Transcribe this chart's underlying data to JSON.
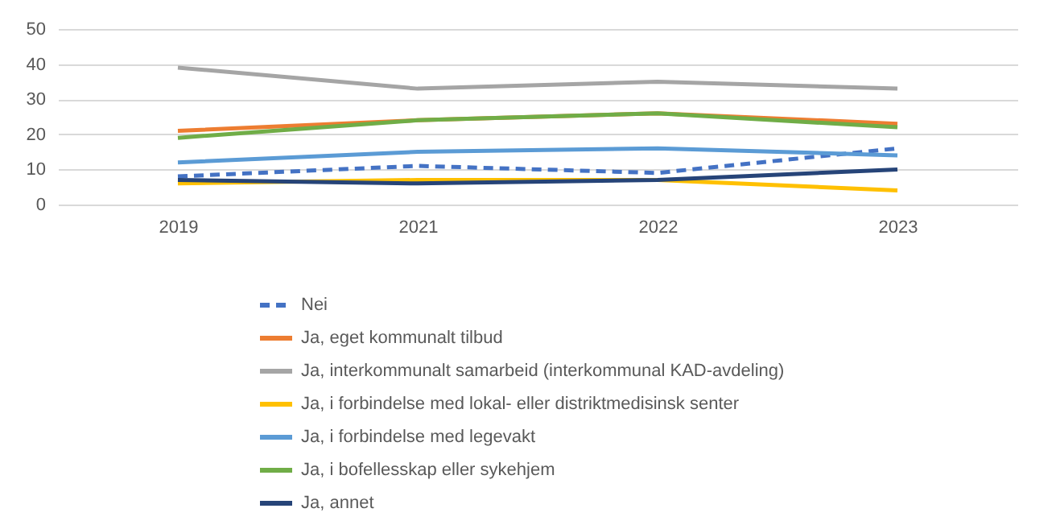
{
  "chart_data": {
    "type": "line",
    "categories": [
      "2019",
      "2021",
      "2022",
      "2023"
    ],
    "series": [
      {
        "name": "Nei",
        "color": "#4472c4",
        "line_style": "dashed",
        "values": [
          8,
          11,
          9,
          16
        ]
      },
      {
        "name": "Ja, eget kommunalt tilbud",
        "color": "#ed7d31",
        "values": [
          21,
          24,
          26,
          23
        ]
      },
      {
        "name": "Ja, interkommunalt samarbeid (interkommunal KAD-avdeling)",
        "color": "#a5a5a5",
        "values": [
          39,
          33,
          35,
          33
        ]
      },
      {
        "name": "Ja, i forbindelse med lokal- eller distriktmedisinsk senter",
        "color": "#ffc000",
        "values": [
          6,
          7,
          7,
          4
        ]
      },
      {
        "name": "Ja, i forbindelse med legevakt",
        "color": "#5b9bd5",
        "values": [
          12,
          15,
          16,
          14
        ]
      },
      {
        "name": "Ja, i bofellesskap eller sykehjem",
        "color": "#70ad47",
        "values": [
          19,
          24,
          26,
          22
        ]
      },
      {
        "name": "Ja, annet",
        "color": "#264478",
        "values": [
          7,
          6,
          7,
          10
        ]
      }
    ],
    "ylim": [
      0,
      50
    ],
    "yticks": [
      0,
      10,
      20,
      30,
      40,
      50
    ],
    "grid": "y",
    "legend": "bottom",
    "line_style": "solid",
    "marker": "none"
  }
}
